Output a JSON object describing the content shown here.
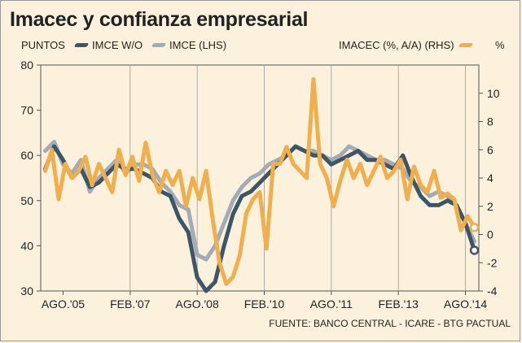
{
  "chart_data": {
    "type": "line",
    "title": "Imacec y confianza empresarial",
    "left_axis_label": "PUNTOS",
    "right_axis_label": "%",
    "source": "FUENTE: BANCO CENTRAL - ICARE - BTG PACTUAL",
    "x_tick_labels": [
      "AGO.'05",
      "FEB.'07",
      "AGO.'08",
      "FEB.'10",
      "AGO.'11",
      "FEB.'13",
      "AGO.'14"
    ],
    "x_range": [
      2005.1,
      2014.9
    ],
    "y_left": {
      "min": 30,
      "max": 80,
      "ticks": [
        30,
        40,
        50,
        60,
        70,
        80
      ]
    },
    "y_right": {
      "min": -4,
      "max": 12,
      "ticks": [
        -4,
        -2,
        0,
        2,
        4,
        6,
        8,
        10
      ]
    },
    "grid_x": true,
    "legend_position": "top",
    "series": [
      {
        "name": "IMCE W/O",
        "axis": "left",
        "color": "#3e5567",
        "x": [
          2005.2,
          2005.4,
          2005.6,
          2005.8,
          2006.0,
          2006.2,
          2006.4,
          2006.6,
          2006.8,
          2007.0,
          2007.2,
          2007.4,
          2007.6,
          2007.8,
          2008.0,
          2008.2,
          2008.4,
          2008.6,
          2008.8,
          2009.0,
          2009.2,
          2009.4,
          2009.6,
          2009.8,
          2010.0,
          2010.2,
          2010.4,
          2010.6,
          2010.8,
          2011.0,
          2011.2,
          2011.4,
          2011.6,
          2011.8,
          2012.0,
          2012.2,
          2012.4,
          2012.6,
          2012.8,
          2013.0,
          2013.2,
          2013.4,
          2013.6,
          2013.8,
          2014.0,
          2014.2,
          2014.4,
          2014.6,
          2014.8
        ],
        "values": [
          57,
          62,
          59,
          55,
          57,
          53,
          54,
          56,
          58,
          57,
          57,
          56,
          55,
          52,
          51,
          46,
          43,
          33,
          30,
          32,
          40,
          47,
          51,
          52,
          54,
          56,
          58,
          60,
          62,
          61,
          60,
          60,
          58,
          59,
          60,
          61,
          59,
          59,
          58,
          57,
          60,
          55,
          51,
          49,
          49,
          50,
          49,
          45,
          39
        ],
        "end_marker": true
      },
      {
        "name": "IMCE (LHS)",
        "axis": "left",
        "color": "#a2acb6",
        "x": [
          2005.2,
          2005.4,
          2005.6,
          2005.8,
          2006.0,
          2006.2,
          2006.4,
          2006.6,
          2006.8,
          2007.0,
          2007.2,
          2007.4,
          2007.6,
          2007.8,
          2008.0,
          2008.2,
          2008.4,
          2008.6,
          2008.8,
          2009.0,
          2009.2,
          2009.4,
          2009.6,
          2009.8,
          2010.0,
          2010.2,
          2010.4,
          2010.6,
          2010.8,
          2011.0,
          2011.2,
          2011.4,
          2011.6,
          2011.8,
          2012.0,
          2012.2,
          2012.4,
          2012.6,
          2012.8,
          2013.0,
          2013.2,
          2013.4,
          2013.6,
          2013.8,
          2014.0,
          2014.2,
          2014.4,
          2014.6,
          2014.8
        ],
        "values": [
          61,
          63,
          58,
          56,
          59,
          52,
          55,
          57,
          59,
          56,
          58,
          58,
          57,
          54,
          52,
          49,
          48,
          38,
          37,
          40,
          45,
          50,
          53,
          55,
          56,
          58,
          59,
          60,
          62,
          61,
          61,
          60,
          59,
          60,
          62,
          61,
          60,
          59,
          59,
          58,
          57,
          54,
          53,
          51,
          52,
          51,
          49,
          45,
          41
        ],
        "end_marker": false
      },
      {
        "name": "IMACEC (%, A/A) (RHS)",
        "axis": "right",
        "color": "#efaf4c",
        "x": [
          2005.2,
          2005.35,
          2005.5,
          2005.65,
          2005.8,
          2005.95,
          2006.1,
          2006.25,
          2006.4,
          2006.55,
          2006.7,
          2006.85,
          2007.0,
          2007.15,
          2007.3,
          2007.45,
          2007.6,
          2007.75,
          2007.9,
          2008.05,
          2008.2,
          2008.35,
          2008.5,
          2008.65,
          2008.8,
          2008.95,
          2009.1,
          2009.25,
          2009.4,
          2009.55,
          2009.7,
          2009.85,
          2010.0,
          2010.15,
          2010.3,
          2010.45,
          2010.6,
          2010.75,
          2010.9,
          2011.05,
          2011.2,
          2011.35,
          2011.5,
          2011.65,
          2011.8,
          2011.95,
          2012.1,
          2012.25,
          2012.4,
          2012.55,
          2012.7,
          2012.85,
          2013.0,
          2013.15,
          2013.3,
          2013.45,
          2013.6,
          2013.75,
          2013.9,
          2014.05,
          2014.2,
          2014.35,
          2014.5,
          2014.65,
          2014.8
        ],
        "values": [
          4.5,
          6,
          2.5,
          5,
          4,
          4.5,
          5.5,
          3.5,
          5,
          4,
          3,
          6,
          4.2,
          5.5,
          3.8,
          6.5,
          4.2,
          3,
          4.5,
          3.5,
          4.5,
          2,
          4,
          2.5,
          4.5,
          1,
          -2,
          -3.5,
          -3,
          -1.5,
          1.5,
          2.5,
          3,
          -1,
          5,
          5,
          6.2,
          5,
          4.5,
          4,
          11,
          5,
          4,
          2,
          3.8,
          5.3,
          4,
          5,
          3.5,
          4.5,
          5.5,
          4,
          4.5,
          5.3,
          2.5,
          4.8,
          3.5,
          3,
          4.5,
          2.6,
          2.9,
          2.5,
          0.3,
          1.3,
          0.5
        ],
        "end_marker": true
      }
    ]
  }
}
